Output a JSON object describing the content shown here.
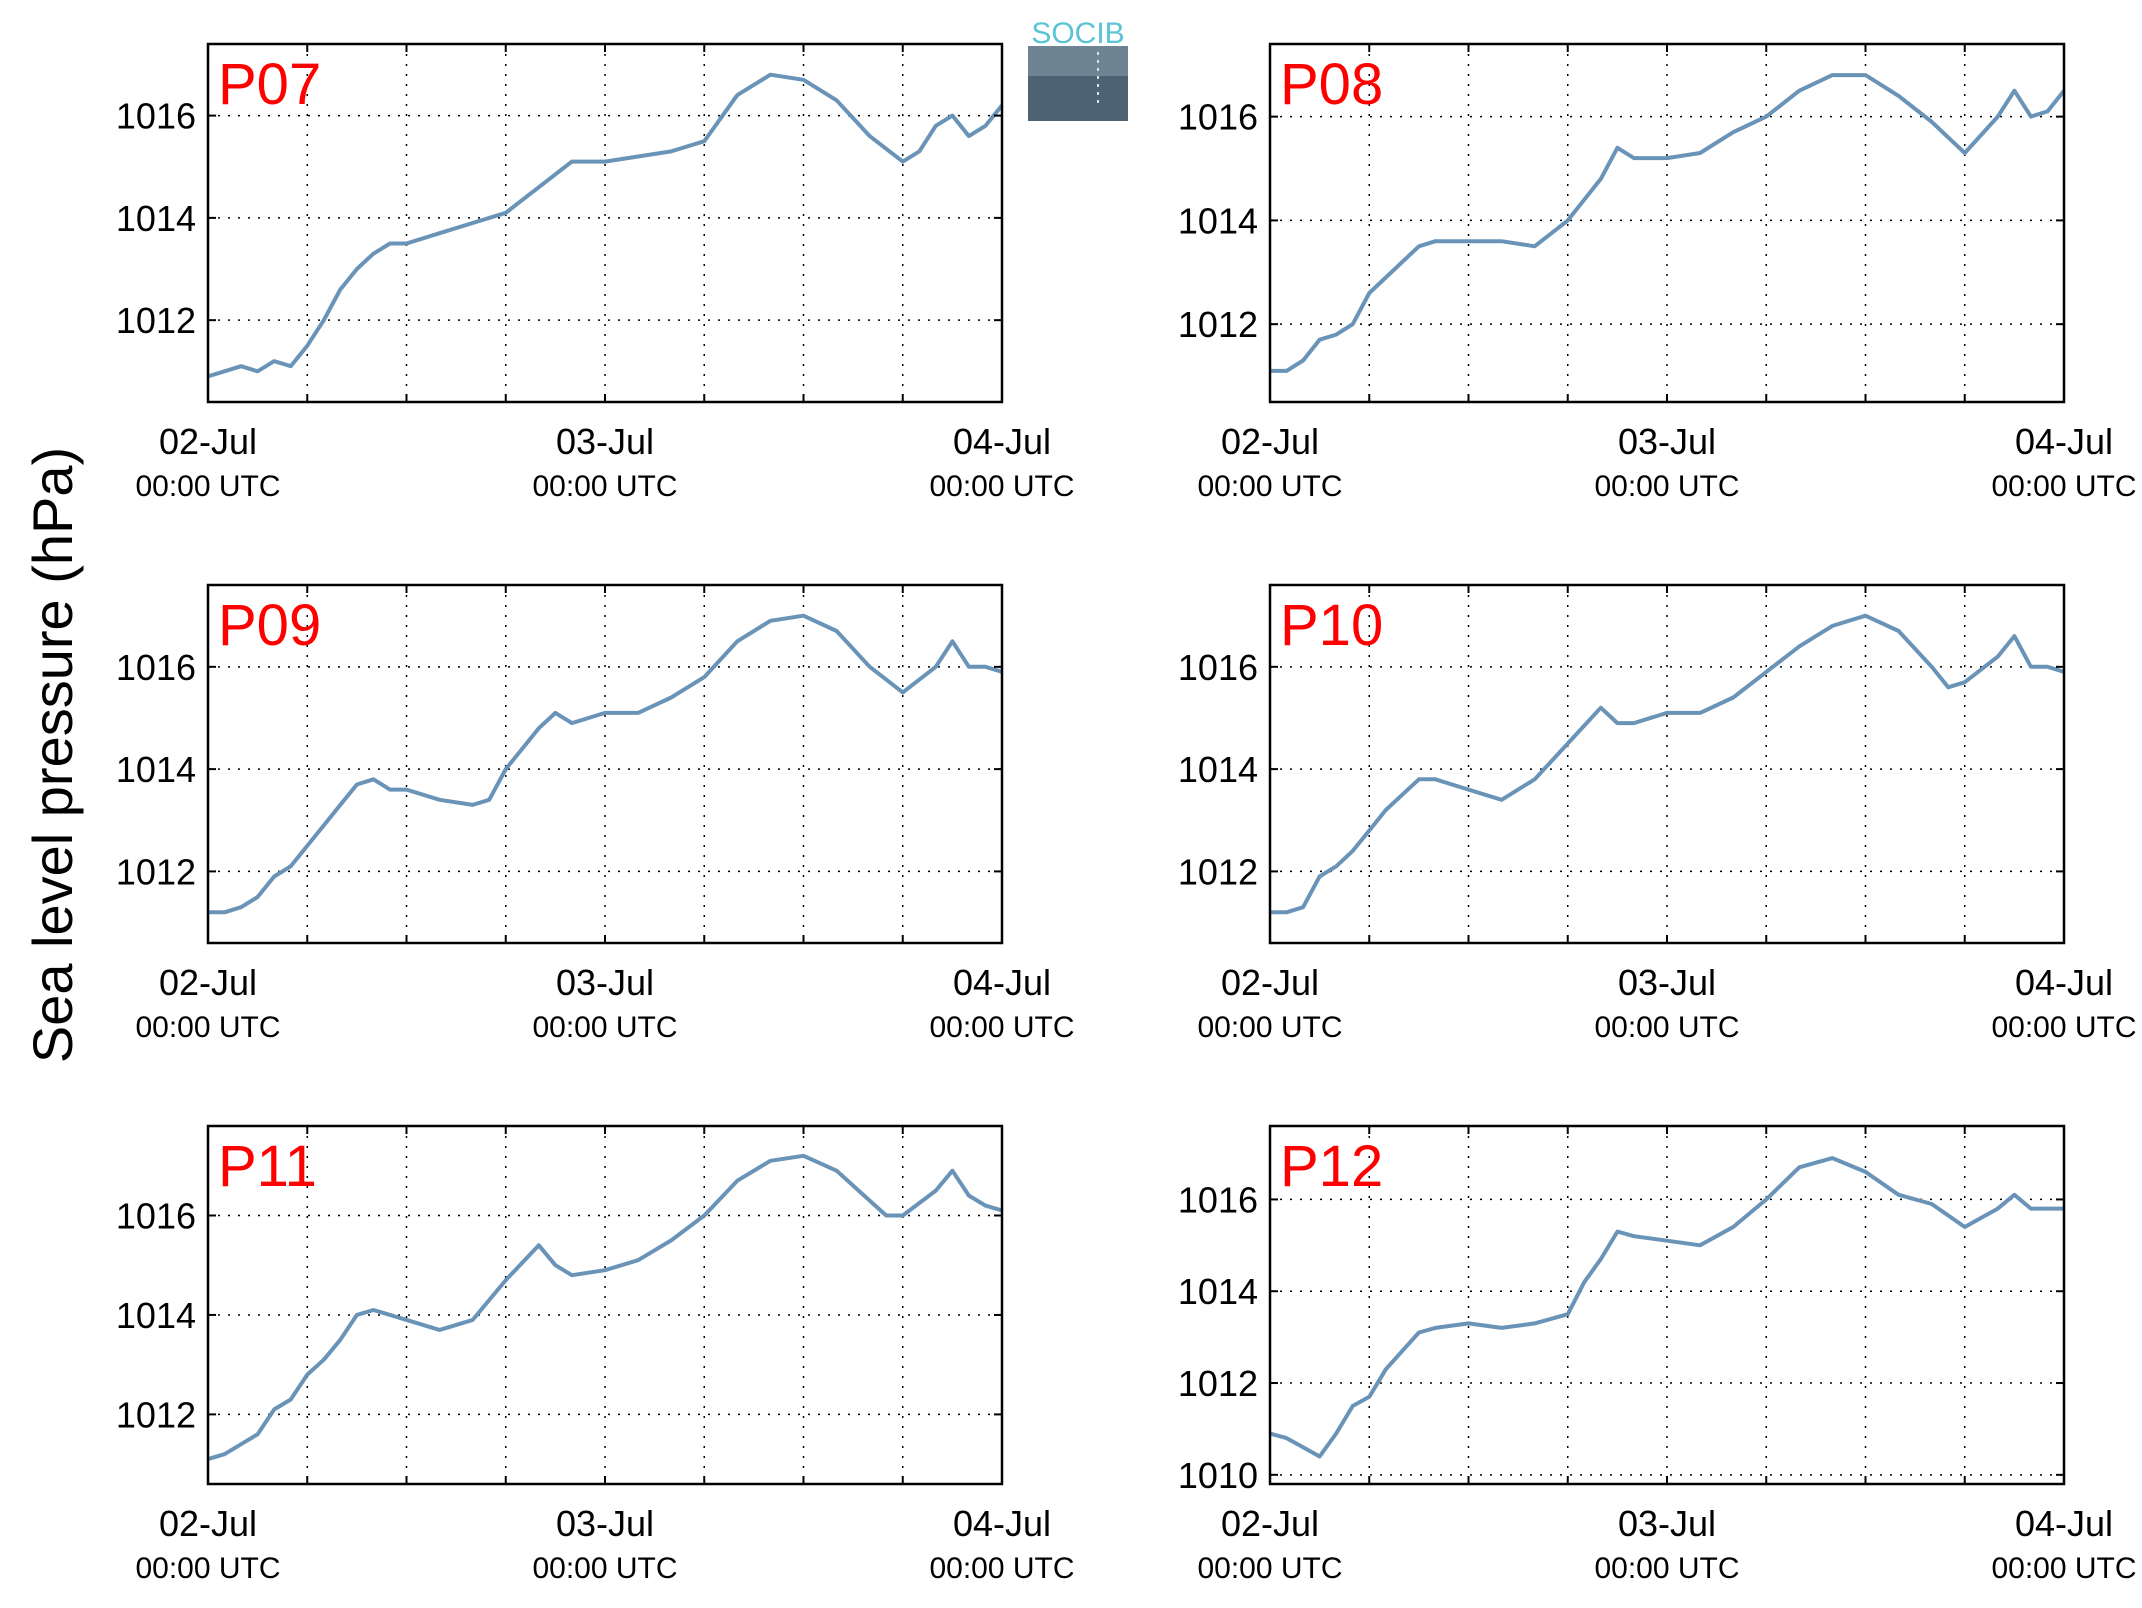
{
  "figure": {
    "ylabel": "Sea level pressure (hPa)",
    "logo_text": "SOCIB",
    "line_color": "#6a93b8",
    "title_color": "#ff0000",
    "logo_color": "#5bc3d6"
  },
  "chart_data": [
    {
      "type": "line",
      "title": "P07",
      "xlabel": "",
      "ylabel": "Sea level pressure (hPa)",
      "x_unit": "hours since 02-Jul 00:00 UTC",
      "xlim": [
        0,
        48
      ],
      "ylim": [
        1010.4,
        1017.4
      ],
      "yticks": [
        1012,
        1014,
        1016
      ],
      "xticks": [
        {
          "label": "02-Jul",
          "sub": "00:00 UTC"
        },
        {
          "label": "03-Jul",
          "sub": "00:00 UTC"
        },
        {
          "label": "04-Jul",
          "sub": "00:00 UTC"
        }
      ],
      "grid": true,
      "series": [
        {
          "x": [
            0,
            1,
            2,
            3,
            4,
            5,
            6,
            7,
            8,
            9,
            10,
            11,
            12,
            14,
            16,
            18,
            20,
            22,
            24,
            26,
            28,
            30,
            32,
            34,
            36,
            38,
            40,
            42,
            43,
            44,
            45,
            46,
            47,
            48
          ],
          "y": [
            1010.9,
            1011.0,
            1011.1,
            1011.0,
            1011.2,
            1011.1,
            1011.5,
            1012.0,
            1012.6,
            1013.0,
            1013.3,
            1013.5,
            1013.5,
            1013.7,
            1013.9,
            1014.1,
            1014.6,
            1015.1,
            1015.1,
            1015.2,
            1015.3,
            1015.5,
            1016.4,
            1016.8,
            1016.7,
            1016.3,
            1015.6,
            1015.1,
            1015.3,
            1015.8,
            1016.0,
            1015.6,
            1015.8,
            1016.2
          ]
        }
      ]
    },
    {
      "type": "line",
      "title": "P08",
      "xlabel": "",
      "ylabel": "Sea level pressure (hPa)",
      "x_unit": "hours since 02-Jul 00:00 UTC",
      "xlim": [
        0,
        48
      ],
      "ylim": [
        1010.5,
        1017.4
      ],
      "yticks": [
        1012,
        1014,
        1016
      ],
      "xticks": [
        {
          "label": "02-Jul",
          "sub": "00:00 UTC"
        },
        {
          "label": "03-Jul",
          "sub": "00:00 UTC"
        },
        {
          "label": "04-Jul",
          "sub": "00:00 UTC"
        }
      ],
      "grid": true,
      "series": [
        {
          "x": [
            0,
            1,
            2,
            3,
            4,
            5,
            6,
            7,
            8,
            9,
            10,
            11,
            12,
            14,
            16,
            18,
            20,
            21,
            22,
            24,
            26,
            28,
            30,
            32,
            34,
            36,
            38,
            40,
            41,
            42,
            44,
            45,
            46,
            47,
            48
          ],
          "y": [
            1011.1,
            1011.1,
            1011.3,
            1011.7,
            1011.8,
            1012.0,
            1012.6,
            1012.9,
            1013.2,
            1013.5,
            1013.6,
            1013.6,
            1013.6,
            1013.6,
            1013.5,
            1014.0,
            1014.8,
            1015.4,
            1015.2,
            1015.2,
            1015.3,
            1015.7,
            1016.0,
            1016.5,
            1016.8,
            1016.8,
            1016.4,
            1015.9,
            1015.6,
            1015.3,
            1016.0,
            1016.5,
            1016.0,
            1016.1,
            1016.5
          ]
        }
      ]
    },
    {
      "type": "line",
      "title": "P09",
      "xlabel": "",
      "ylabel": "Sea level pressure (hPa)",
      "x_unit": "hours since 02-Jul 00:00 UTC",
      "xlim": [
        0,
        48
      ],
      "ylim": [
        1010.6,
        1017.6
      ],
      "yticks": [
        1012,
        1014,
        1016
      ],
      "xticks": [
        {
          "label": "02-Jul",
          "sub": "00:00 UTC"
        },
        {
          "label": "03-Jul",
          "sub": "00:00 UTC"
        },
        {
          "label": "04-Jul",
          "sub": "00:00 UTC"
        }
      ],
      "grid": true,
      "series": [
        {
          "x": [
            0,
            1,
            2,
            3,
            4,
            5,
            6,
            7,
            8,
            9,
            10,
            11,
            12,
            14,
            16,
            17,
            18,
            20,
            21,
            22,
            24,
            26,
            28,
            30,
            32,
            34,
            36,
            38,
            40,
            42,
            44,
            45,
            46,
            47,
            48
          ],
          "y": [
            1011.2,
            1011.2,
            1011.3,
            1011.5,
            1011.9,
            1012.1,
            1012.5,
            1012.9,
            1013.3,
            1013.7,
            1013.8,
            1013.6,
            1013.6,
            1013.4,
            1013.3,
            1013.4,
            1014.0,
            1014.8,
            1015.1,
            1014.9,
            1015.1,
            1015.1,
            1015.4,
            1015.8,
            1016.5,
            1016.9,
            1017.0,
            1016.7,
            1016.0,
            1015.5,
            1016.0,
            1016.5,
            1016.0,
            1016.0,
            1015.9
          ]
        }
      ]
    },
    {
      "type": "line",
      "title": "P10",
      "xlabel": "",
      "ylabel": "Sea level pressure (hPa)",
      "x_unit": "hours since 02-Jul 00:00 UTC",
      "xlim": [
        0,
        48
      ],
      "ylim": [
        1010.6,
        1017.6
      ],
      "yticks": [
        1012,
        1014,
        1016
      ],
      "xticks": [
        {
          "label": "02-Jul",
          "sub": "00:00 UTC"
        },
        {
          "label": "03-Jul",
          "sub": "00:00 UTC"
        },
        {
          "label": "04-Jul",
          "sub": "00:00 UTC"
        }
      ],
      "grid": true,
      "series": [
        {
          "x": [
            0,
            1,
            2,
            3,
            4,
            5,
            6,
            7,
            8,
            9,
            10,
            11,
            12,
            14,
            16,
            18,
            20,
            21,
            22,
            24,
            26,
            28,
            30,
            32,
            34,
            36,
            38,
            40,
            41,
            42,
            44,
            45,
            46,
            47,
            48
          ],
          "y": [
            1011.2,
            1011.2,
            1011.3,
            1011.9,
            1012.1,
            1012.4,
            1012.8,
            1013.2,
            1013.5,
            1013.8,
            1013.8,
            1013.7,
            1013.6,
            1013.4,
            1013.8,
            1014.5,
            1015.2,
            1014.9,
            1014.9,
            1015.1,
            1015.1,
            1015.4,
            1015.9,
            1016.4,
            1016.8,
            1017.0,
            1016.7,
            1016.0,
            1015.6,
            1015.7,
            1016.2,
            1016.6,
            1016.0,
            1016.0,
            1015.9
          ]
        }
      ]
    },
    {
      "type": "line",
      "title": "P11",
      "xlabel": "",
      "ylabel": "Sea level pressure (hPa)",
      "x_unit": "hours since 02-Jul 00:00 UTC",
      "xlim": [
        0,
        48
      ],
      "ylim": [
        1010.6,
        1017.8
      ],
      "yticks": [
        1012,
        1014,
        1016
      ],
      "xticks": [
        {
          "label": "02-Jul",
          "sub": "00:00 UTC"
        },
        {
          "label": "03-Jul",
          "sub": "00:00 UTC"
        },
        {
          "label": "04-Jul",
          "sub": "00:00 UTC"
        }
      ],
      "grid": true,
      "series": [
        {
          "x": [
            0,
            1,
            2,
            3,
            4,
            5,
            6,
            7,
            8,
            9,
            10,
            11,
            12,
            14,
            16,
            18,
            20,
            21,
            22,
            24,
            26,
            28,
            30,
            32,
            34,
            36,
            38,
            40,
            41,
            42,
            44,
            45,
            46,
            47,
            48
          ],
          "y": [
            1011.1,
            1011.2,
            1011.4,
            1011.6,
            1012.1,
            1012.3,
            1012.8,
            1013.1,
            1013.5,
            1014.0,
            1014.1,
            1014.0,
            1013.9,
            1013.7,
            1013.9,
            1014.7,
            1015.4,
            1015.0,
            1014.8,
            1014.9,
            1015.1,
            1015.5,
            1016.0,
            1016.7,
            1017.1,
            1017.2,
            1016.9,
            1016.3,
            1016.0,
            1016.0,
            1016.5,
            1016.9,
            1016.4,
            1016.2,
            1016.1
          ]
        }
      ]
    },
    {
      "type": "line",
      "title": "P12",
      "xlabel": "",
      "ylabel": "Sea level pressure (hPa)",
      "x_unit": "hours since 02-Jul 00:00 UTC",
      "xlim": [
        0,
        48
      ],
      "ylim": [
        1009.8,
        1017.6
      ],
      "yticks": [
        1010,
        1012,
        1014,
        1016
      ],
      "xticks": [
        {
          "label": "02-Jul",
          "sub": "00:00 UTC"
        },
        {
          "label": "03-Jul",
          "sub": "00:00 UTC"
        },
        {
          "label": "04-Jul",
          "sub": "00:00 UTC"
        }
      ],
      "grid": true,
      "series": [
        {
          "x": [
            0,
            1,
            2,
            3,
            4,
            5,
            6,
            7,
            8,
            9,
            10,
            12,
            14,
            16,
            18,
            19,
            20,
            21,
            22,
            24,
            26,
            28,
            30,
            32,
            34,
            36,
            38,
            40,
            42,
            43,
            44,
            45,
            46,
            47,
            48
          ],
          "y": [
            1010.9,
            1010.8,
            1010.6,
            1010.4,
            1010.9,
            1011.5,
            1011.7,
            1012.3,
            1012.7,
            1013.1,
            1013.2,
            1013.3,
            1013.2,
            1013.3,
            1013.5,
            1014.2,
            1014.7,
            1015.3,
            1015.2,
            1015.1,
            1015.0,
            1015.4,
            1016.0,
            1016.7,
            1016.9,
            1016.6,
            1016.1,
            1015.9,
            1015.4,
            1015.6,
            1015.8,
            1016.1,
            1015.8,
            1015.8,
            1015.8
          ]
        }
      ]
    }
  ]
}
